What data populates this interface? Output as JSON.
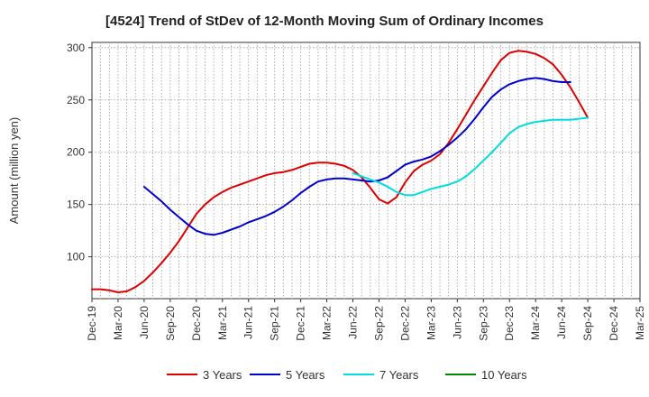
{
  "chart_data": {
    "type": "line",
    "title": "[4524]  Trend of StDev of 12-Month Moving Sum of Ordinary Incomes",
    "xlabel": "",
    "ylabel": "Amount (million yen)",
    "ylim": [
      60,
      305
    ],
    "yticks": [
      100,
      150,
      200,
      250,
      300
    ],
    "grid": true,
    "legend_position": "bottom",
    "x_tick_labels": [
      "Dec-19",
      "Mar-20",
      "Jun-20",
      "Sep-20",
      "Dec-20",
      "Mar-21",
      "Jun-21",
      "Sep-21",
      "Dec-21",
      "Mar-22",
      "Jun-22",
      "Sep-22",
      "Dec-22",
      "Mar-23",
      "Jun-23",
      "Sep-23",
      "Dec-23",
      "Mar-24",
      "Jun-24",
      "Sep-24",
      "Dec-24",
      "Mar-25"
    ],
    "series": [
      {
        "name": "3 Years",
        "color": "#dd0000",
        "start_index": 0,
        "values": [
          69,
          69,
          68,
          66,
          67,
          71,
          77,
          85,
          94,
          104,
          115,
          128,
          141,
          150,
          157,
          162,
          166,
          169,
          172,
          175,
          178,
          180,
          181,
          183,
          186,
          189,
          190,
          190,
          189,
          187,
          183,
          176,
          166,
          155,
          151,
          157,
          171,
          182,
          188,
          192,
          198,
          209,
          222,
          236,
          250,
          263,
          276,
          288,
          295,
          297,
          296,
          294,
          290,
          284,
          274,
          262,
          248,
          233
        ]
      },
      {
        "name": "5 Years",
        "color": "#0000cc",
        "start_index": 6,
        "values": [
          167,
          160,
          153,
          145,
          138,
          131,
          125,
          122,
          121,
          123,
          126,
          129,
          133,
          136,
          139,
          143,
          148,
          154,
          161,
          167,
          172,
          174,
          175,
          175,
          174,
          173,
          172,
          173,
          176,
          182,
          188,
          191,
          193,
          196,
          201,
          207,
          214,
          222,
          232,
          243,
          253,
          260,
          265,
          268,
          270,
          271,
          270,
          268,
          267,
          267
        ]
      },
      {
        "name": "7 Years",
        "color": "#00dddd",
        "start_index": 30,
        "values": [
          180,
          177,
          174,
          171,
          167,
          162,
          159,
          159,
          162,
          165,
          167,
          169,
          172,
          177,
          184,
          192,
          200,
          209,
          218,
          224,
          227,
          229,
          230,
          231,
          231,
          231,
          232,
          233
        ]
      },
      {
        "name": "10 Years",
        "color": "#008800",
        "start_index": 0,
        "values": []
      }
    ]
  }
}
